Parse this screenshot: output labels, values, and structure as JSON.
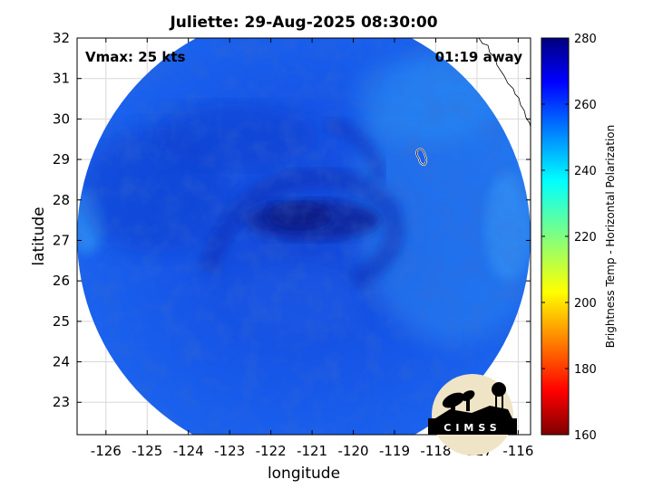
{
  "title": "Juliette: 29-Aug-2025 08:30:00",
  "annotations": {
    "vmax": "Vmax: 25 kts",
    "time_away": "01:19 away"
  },
  "axes": {
    "xlabel": "longitude",
    "ylabel": "latitude",
    "xlim": [
      -126.7,
      -115.7
    ],
    "ylim": [
      22.2,
      32.0
    ],
    "xticks": [
      -126,
      -125,
      -124,
      -123,
      -122,
      -121,
      -120,
      -119,
      -118,
      -117,
      -116
    ],
    "yticks": [
      23,
      24,
      25,
      26,
      27,
      28,
      29,
      30,
      31,
      32
    ],
    "grid": true
  },
  "colorbar": {
    "label": "Brightness Temp - Horizontal Polarization",
    "min": 160,
    "max": 280,
    "ticks": [
      160,
      180,
      200,
      220,
      240,
      260,
      280
    ],
    "colormap": "jet"
  },
  "storm": {
    "name": "Juliette",
    "center_lon": -121.0,
    "center_lat": 27.2
  },
  "swath": {
    "center_lon": -121.2,
    "center_lat": 27.0,
    "typical_temp": 255,
    "core_temp": 265
  },
  "logo": {
    "text": "CIMSS",
    "bg_color": "#efe4c6",
    "fg_color": "#000000"
  },
  "colors": {
    "swath_blue": "#1458e6",
    "core_blue": "#0a1f9a",
    "coastline": "#000000"
  }
}
